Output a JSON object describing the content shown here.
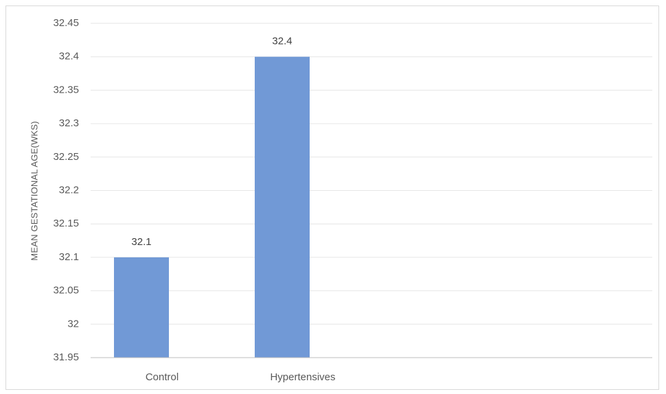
{
  "chart_data": {
    "type": "bar",
    "title": "",
    "xlabel": "",
    "ylabel": "MEAN GESTATIONAL AGE(WKS)",
    "categories": [
      "Control",
      "Hypertensives"
    ],
    "values": [
      32.1,
      32.4
    ],
    "data_labels": [
      "32.1",
      "32.4"
    ],
    "ylim": [
      31.95,
      32.45
    ],
    "yticks": [
      "31.95",
      "32",
      "32.05",
      "32.1",
      "32.15",
      "32.2",
      "32.25",
      "32.3",
      "32.35",
      "32.4",
      "32.45"
    ],
    "bar_color": "#7199d6",
    "grid": true,
    "legend": "none"
  }
}
